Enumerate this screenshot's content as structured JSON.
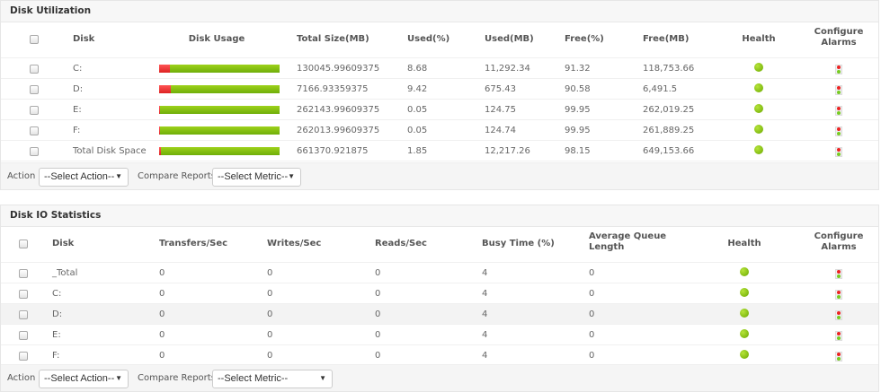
{
  "disk_utilization": {
    "title": "Disk Utilization",
    "headers": {
      "disk": "Disk",
      "usage": "Disk Usage",
      "total": "Total Size(MB)",
      "used_pct": "Used(%)",
      "used_mb": "Used(MB)",
      "free_pct": "Free(%)",
      "free_mb": "Free(MB)",
      "health": "Health",
      "alarms_1": "Configure",
      "alarms_2": "Alarms"
    },
    "rows": [
      {
        "disk": "C:",
        "total": "130045.99609375",
        "used_pct": "8.68",
        "used_mb": "11,292.34",
        "free_pct": "91.32",
        "free_mb": "118,753.66",
        "usage": 8.68
      },
      {
        "disk": "D:",
        "total": "7166.93359375",
        "used_pct": "9.42",
        "used_mb": "675.43",
        "free_pct": "90.58",
        "free_mb": "6,491.5",
        "usage": 9.42
      },
      {
        "disk": "E:",
        "total": "262143.99609375",
        "used_pct": "0.05",
        "used_mb": "124.75",
        "free_pct": "99.95",
        "free_mb": "262,019.25",
        "usage": 0.05
      },
      {
        "disk": "F:",
        "total": "262013.99609375",
        "used_pct": "0.05",
        "used_mb": "124.74",
        "free_pct": "99.95",
        "free_mb": "261,889.25",
        "usage": 0.05
      },
      {
        "disk": "Total Disk Space",
        "total": "661370.921875",
        "used_pct": "1.85",
        "used_mb": "12,217.26",
        "free_pct": "98.15",
        "free_mb": "649,153.66",
        "usage": 1.85
      }
    ],
    "footer": {
      "action_label": "Action",
      "action_value": "--Select Action--",
      "compare_label": "Compare Reports",
      "metric_value": "--Select Metric--"
    }
  },
  "disk_io": {
    "title": "Disk IO Statistics",
    "headers": {
      "disk": "Disk",
      "transfers": "Transfers/Sec",
      "writes": "Writes/Sec",
      "reads": "Reads/Sec",
      "busy": "Busy Time  (%)",
      "queue_1": "Average Queue",
      "queue_2": "Length",
      "health": "Health",
      "alarms_1": "Configure",
      "alarms_2": "Alarms"
    },
    "rows": [
      {
        "disk": "_Total",
        "transfers": "0",
        "writes": "0",
        "reads": "0",
        "busy": "4",
        "queue": "0"
      },
      {
        "disk": "C:",
        "transfers": "0",
        "writes": "0",
        "reads": "0",
        "busy": "4",
        "queue": "0"
      },
      {
        "disk": "D:",
        "transfers": "0",
        "writes": "0",
        "reads": "0",
        "busy": "4",
        "queue": "0"
      },
      {
        "disk": "E:",
        "transfers": "0",
        "writes": "0",
        "reads": "0",
        "busy": "4",
        "queue": "0"
      },
      {
        "disk": "F:",
        "transfers": "0",
        "writes": "0",
        "reads": "0",
        "busy": "4",
        "queue": "0"
      }
    ],
    "footer": {
      "action_label": "Action",
      "action_value": "--Select Action--",
      "compare_label": "Compare Reports",
      "metric_value": "--Select Metric--"
    }
  },
  "colors": {
    "used": "#e33333",
    "free": "#8cc414",
    "health_ok": "#8cc414"
  }
}
